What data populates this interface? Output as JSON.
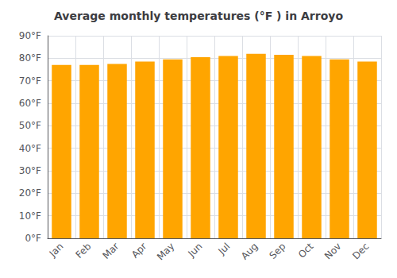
{
  "chart_data": {
    "type": "bar",
    "title": "Average monthly temperatures (°F ) in Arroyo",
    "categories": [
      "Jan",
      "Feb",
      "Mar",
      "Apr",
      "May",
      "Jun",
      "Jul",
      "Aug",
      "Sep",
      "Oct",
      "Nov",
      "Dec"
    ],
    "values": [
      77,
      77,
      77.5,
      78.5,
      79.5,
      80.5,
      81,
      82,
      81.5,
      81,
      79.5,
      78.5
    ],
    "color": "#FFA500",
    "ylim": [
      0,
      90
    ],
    "yticks": [
      {
        "value": 0,
        "label": "0°F"
      },
      {
        "value": 10,
        "label": "10°F"
      },
      {
        "value": 20,
        "label": "20°F"
      },
      {
        "value": 30,
        "label": "30°F"
      },
      {
        "value": 40,
        "label": "40°F"
      },
      {
        "value": 50,
        "label": "50°F"
      },
      {
        "value": 60,
        "label": "60°F"
      },
      {
        "value": 70,
        "label": "70°F"
      },
      {
        "value": 80,
        "label": "80°F"
      },
      {
        "value": 90,
        "label": "90°F"
      }
    ],
    "grid": true
  }
}
